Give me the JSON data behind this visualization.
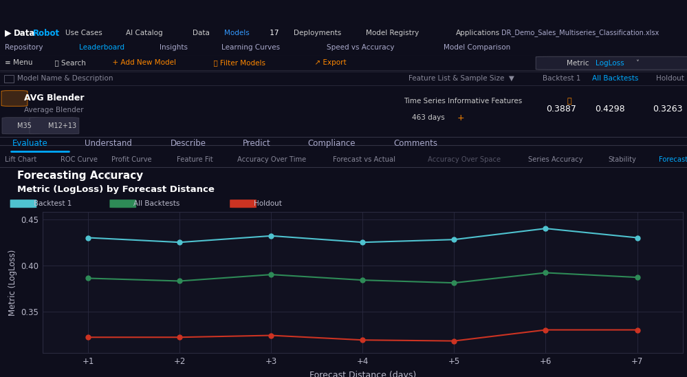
{
  "title": "Forecasting Accuracy",
  "subtitle": "Metric (LogLoss) by Forecast Distance",
  "xlabel": "Forecast Distance (days)",
  "ylabel": "Metric (LogLoss)",
  "x_labels": [
    "+1",
    "+2",
    "+3",
    "+4",
    "+5",
    "+6",
    "+7"
  ],
  "x_values": [
    1,
    2,
    3,
    4,
    5,
    6,
    7
  ],
  "backtest1": [
    0.43,
    0.425,
    0.432,
    0.425,
    0.428,
    0.44,
    0.43
  ],
  "all_backtests": [
    0.386,
    0.383,
    0.39,
    0.384,
    0.381,
    0.392,
    0.387
  ],
  "holdout": [
    0.322,
    0.322,
    0.324,
    0.319,
    0.318,
    0.33,
    0.33
  ],
  "backtest1_color": "#4fc3d0",
  "all_backtests_color": "#2e8b57",
  "holdout_color": "#cc3322",
  "plot_bg": "#111120",
  "panel_bg": "#1a1a2a",
  "dark_bg": "#0e0e1c",
  "mid_bg": "#14141f",
  "grid_color": "#2a2a40",
  "text_color": "#ffffff",
  "label_color": "#bbbbcc",
  "muted_color": "#888899",
  "tab_highlight": "#00aaff",
  "orange_color": "#ff8800",
  "ylim": [
    0.305,
    0.458
  ],
  "yticks": [
    0.35,
    0.4,
    0.45
  ],
  "ytick_labels": [
    "0.35",
    "0.40",
    "0.45"
  ],
  "marker_size": 6,
  "lw": 1.5
}
